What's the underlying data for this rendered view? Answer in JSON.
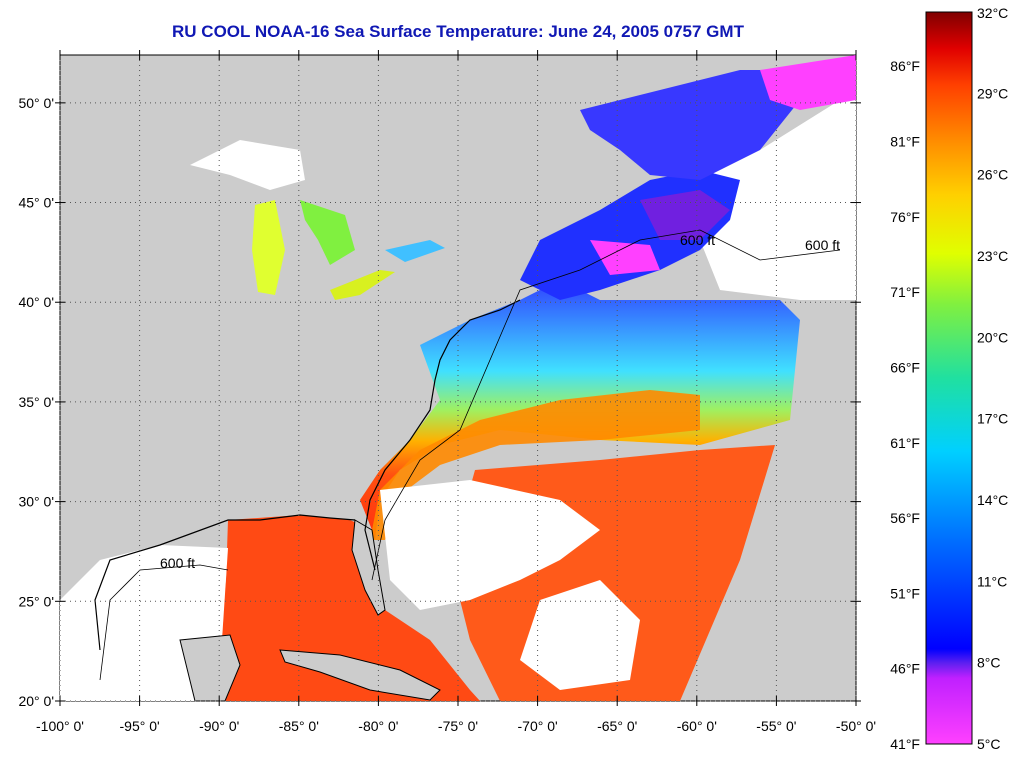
{
  "title": "RU COOL  NOAA-16  Sea Surface Temperature:  June 24, 2005 0757 GMT",
  "map": {
    "lat_labels": [
      "50° 0'",
      "45° 0'",
      "40° 0'",
      "35° 0'",
      "30° 0'",
      "25° 0'",
      "20° 0'"
    ],
    "lat_values": [
      50,
      45,
      40,
      35,
      30,
      25,
      20
    ],
    "lon_labels": [
      "-100° 0'",
      "-95° 0'",
      "-90° 0'",
      "-85° 0'",
      "-80° 0'",
      "-75° 0'",
      "-70° 0'",
      "-65° 0'",
      "-60° 0'",
      "-55° 0'",
      "-50° 0'"
    ],
    "lon_values": [
      -100,
      -95,
      -90,
      -85,
      -80,
      -75,
      -70,
      -65,
      -60,
      -55,
      -50
    ],
    "depth_label": "600 ft",
    "colors": {
      "land": "#cccccc",
      "cloud": "#ffffff",
      "coast": "#000000"
    }
  },
  "colorbar": {
    "celsius": [
      "32°C",
      "29°C",
      "26°C",
      "23°C",
      "20°C",
      "17°C",
      "14°C",
      "11°C",
      "8°C",
      "5°C"
    ],
    "fahrenheit": [
      "86°F",
      "81°F",
      "76°F",
      "71°F",
      "66°F",
      "61°F",
      "56°F",
      "51°F",
      "46°F",
      "41°F"
    ],
    "range_c": [
      5,
      32
    ],
    "range_f": [
      41,
      89.6
    ],
    "stops": [
      "#ff40ff",
      "#c020ff",
      "#6020f0",
      "#0000ff",
      "#0070ff",
      "#00d0ff",
      "#20e0a0",
      "#80f040",
      "#e0ff00",
      "#ffd000",
      "#ff9000",
      "#ff4000",
      "#e00000",
      "#800000"
    ]
  }
}
